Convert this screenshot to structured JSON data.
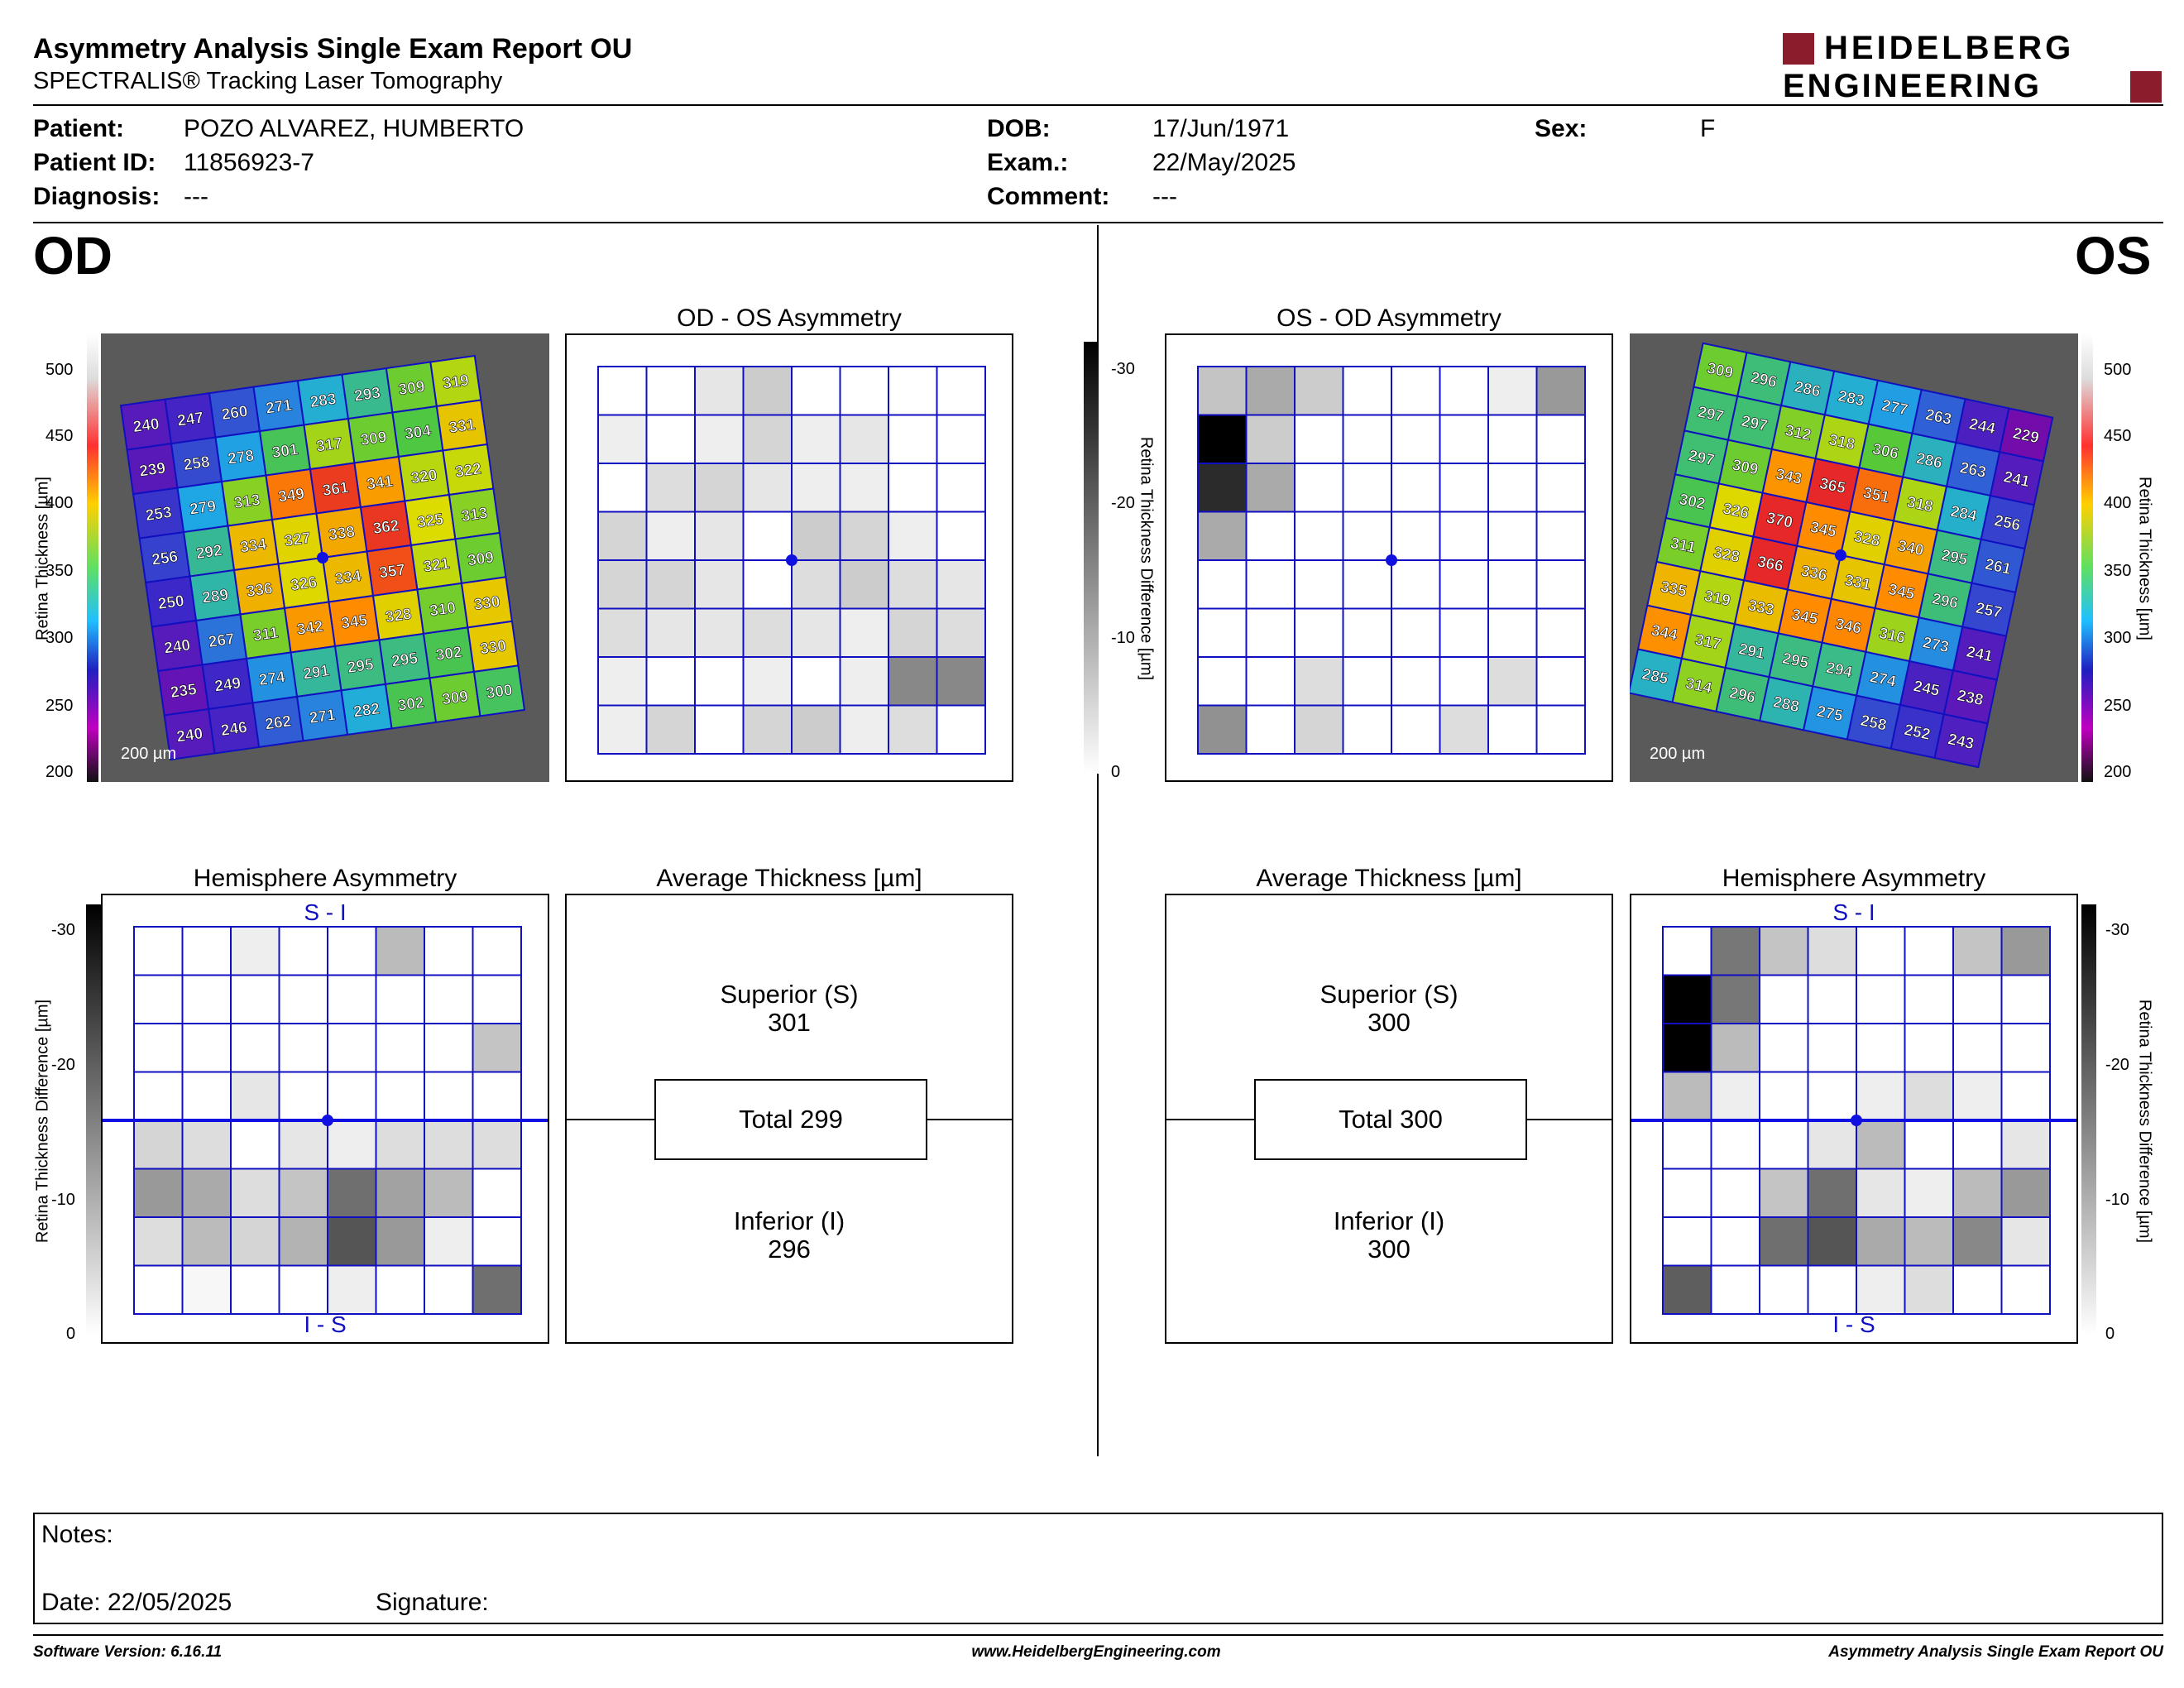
{
  "header": {
    "title": "Asymmetry Analysis Single Exam Report OU",
    "subtitle": "SPECTRALIS® Tracking Laser Tomography",
    "logo_line1": "HEIDELBERG",
    "logo_line2": "ENGINEERING"
  },
  "patient": {
    "patient_label": "Patient:",
    "patient_value": "POZO ALVAREZ, HUMBERTO",
    "id_label": "Patient ID:",
    "id_value": "11856923-7",
    "diag_label": "Diagnosis:",
    "diag_value": "---",
    "dob_label": "DOB:",
    "dob_value": "17/Jun/1971",
    "exam_label": "Exam.:",
    "exam_value": "22/May/2025",
    "comment_label": "Comment:",
    "comment_value": "---",
    "sex_label": "Sex:",
    "sex_value": "F"
  },
  "eyes": {
    "left": "OD",
    "right": "OS"
  },
  "panels": {
    "od_os": "OD - OS Asymmetry",
    "os_od": "OS - OD Asymmetry",
    "hemi_od": "Hemisphere Asymmetry",
    "hemi_os": "Hemisphere Asymmetry",
    "avg_od": "Average Thickness [µm]",
    "avg_os": "Average Thickness [µm]",
    "si": "S - I",
    "is": "I - S"
  },
  "scales": {
    "thickness_ticks": [
      "500",
      "450",
      "400",
      "350",
      "300",
      "250",
      "200"
    ],
    "thickness_label": "Retina  Thickness [µm]",
    "diff_ticks": [
      "-30",
      "-20",
      "-10",
      "0"
    ],
    "diff_label": "Retina Thickness Difference [µm]",
    "scale_bar": "200 µm"
  },
  "average": {
    "od": {
      "sup_label": "Superior (S)",
      "sup": "301",
      "total": "Total 299",
      "inf_label": "Inferior (I)",
      "inf": "296"
    },
    "os": {
      "sup_label": "Superior (S)",
      "sup": "300",
      "total": "Total 300",
      "inf_label": "Inferior (I)",
      "inf": "300"
    }
  },
  "thickness_grid": {
    "od": [
      [
        240,
        247,
        260,
        271,
        283,
        293,
        309,
        319
      ],
      [
        239,
        258,
        278,
        301,
        317,
        309,
        304,
        331
      ],
      [
        253,
        279,
        313,
        349,
        361,
        341,
        320,
        322
      ],
      [
        256,
        292,
        334,
        327,
        338,
        362,
        325,
        313
      ],
      [
        250,
        289,
        336,
        326,
        334,
        357,
        321,
        309
      ],
      [
        240,
        267,
        311,
        342,
        345,
        328,
        310,
        330
      ],
      [
        235,
        249,
        274,
        291,
        295,
        295,
        302,
        330
      ],
      [
        240,
        246,
        262,
        271,
        282,
        302,
        309,
        300
      ]
    ],
    "os": [
      [
        309,
        296,
        286,
        283,
        277,
        263,
        244,
        229
      ],
      [
        297,
        297,
        312,
        318,
        306,
        286,
        263,
        241
      ],
      [
        297,
        309,
        343,
        365,
        351,
        318,
        284,
        256
      ],
      [
        302,
        326,
        370,
        345,
        328,
        340,
        295,
        261
      ],
      [
        311,
        328,
        366,
        336,
        331,
        345,
        296,
        257
      ],
      [
        335,
        319,
        333,
        345,
        346,
        316,
        273,
        241
      ],
      [
        344,
        317,
        291,
        295,
        294,
        274,
        245,
        238
      ],
      [
        285,
        314,
        296,
        288,
        275,
        258,
        252,
        243
      ]
    ]
  },
  "asym_grid": {
    "od": [
      [
        0,
        0,
        3,
        6,
        0,
        0,
        0,
        0
      ],
      [
        2,
        0,
        2,
        5,
        2,
        3,
        0,
        0
      ],
      [
        0,
        4,
        5,
        3,
        2,
        2,
        0,
        0
      ],
      [
        5,
        2,
        3,
        0,
        6,
        5,
        2,
        0
      ],
      [
        5,
        5,
        3,
        0,
        4,
        6,
        4,
        3
      ],
      [
        4,
        3,
        3,
        4,
        3,
        2,
        5,
        4
      ],
      [
        2,
        0,
        0,
        2,
        0,
        2,
        14,
        14
      ],
      [
        2,
        5,
        0,
        5,
        6,
        2,
        4,
        0
      ]
    ],
    "os": [
      [
        7,
        10,
        6,
        0,
        0,
        0,
        2,
        12
      ],
      [
        30,
        6,
        0,
        0,
        0,
        0,
        0,
        0
      ],
      [
        25,
        10,
        0,
        0,
        0,
        0,
        0,
        0
      ],
      [
        10,
        0,
        0,
        0,
        0,
        0,
        0,
        0
      ],
      [
        0,
        0,
        0,
        0,
        0,
        0,
        0,
        0
      ],
      [
        0,
        0,
        0,
        0,
        0,
        0,
        0,
        0
      ],
      [
        0,
        0,
        4,
        0,
        0,
        0,
        4,
        0
      ],
      [
        13,
        0,
        5,
        0,
        0,
        4,
        0,
        0
      ]
    ]
  },
  "hemi_grid": {
    "od": [
      [
        0,
        0,
        2,
        0,
        0,
        8,
        0,
        0
      ],
      [
        0,
        0,
        0,
        0,
        0,
        0,
        0,
        0
      ],
      [
        0,
        0,
        0,
        0,
        0,
        0,
        0,
        7
      ],
      [
        0,
        0,
        3,
        0,
        0,
        0,
        0,
        0
      ],
      [
        5,
        4,
        0,
        3,
        2,
        4,
        4,
        4
      ],
      [
        12,
        10,
        4,
        7,
        17,
        11,
        8,
        0
      ],
      [
        4,
        8,
        5,
        9,
        20,
        12,
        2,
        0
      ],
      [
        0,
        1,
        0,
        0,
        2,
        0,
        0,
        17
      ]
    ],
    "os": [
      [
        0,
        16,
        7,
        4,
        0,
        0,
        7,
        12
      ],
      [
        30,
        16,
        0,
        0,
        0,
        0,
        0,
        0
      ],
      [
        30,
        8,
        0,
        0,
        0,
        0,
        0,
        0
      ],
      [
        8,
        2,
        0,
        0,
        2,
        4,
        2,
        0
      ],
      [
        0,
        0,
        0,
        3,
        8,
        0,
        0,
        3
      ],
      [
        0,
        0,
        7,
        17,
        3,
        2,
        8,
        12
      ],
      [
        0,
        0,
        17,
        20,
        10,
        8,
        14,
        3
      ],
      [
        19,
        0,
        0,
        0,
        2,
        4,
        0,
        0
      ]
    ]
  },
  "notes": {
    "label": "Notes:",
    "date": "Date: 22/05/2025",
    "signature": "Signature:"
  },
  "footer": {
    "left": "Software Version: 6.16.11",
    "center": "www.HeidelbergEngineering.com",
    "right": "Asymmetry Analysis Single Exam Report OU"
  }
}
